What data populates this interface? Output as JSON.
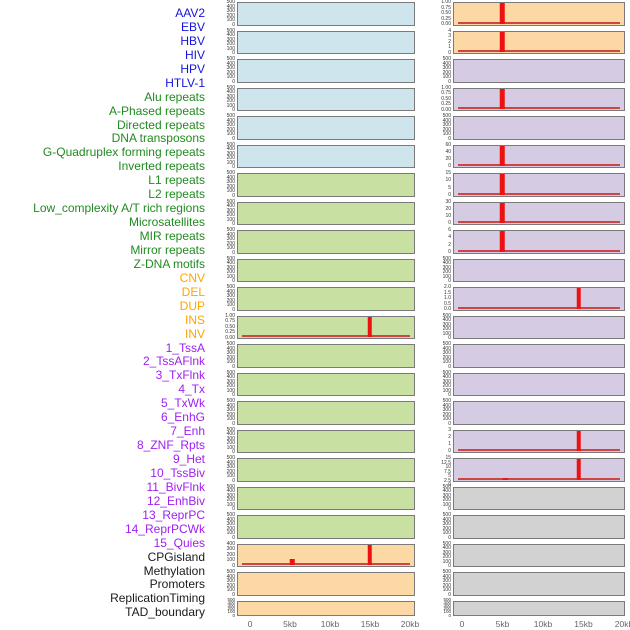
{
  "chart_data": {
    "type": "bar",
    "description": "Per-track genomic feature density profiles over a 0-20kb window; two panel columns of 22 tracks each; red bars mark feature density spikes",
    "x_axis": {
      "tick_labels": [
        "0",
        "5kb",
        "10kb",
        "15kb",
        "20kb"
      ],
      "range_kb": [
        0,
        20
      ]
    },
    "groups": {
      "virus": {
        "label_color": "#1414dc",
        "panel_color": "#cfe5ee"
      },
      "repeat": {
        "label_color": "#208b20",
        "panel_color": "#c9e0a3"
      },
      "sv": {
        "label_color": "#ffa500",
        "panel_color": "#fcd8a4"
      },
      "chromhmm": {
        "label_color": "#a020f0",
        "panel_color": "#d5cbe3"
      },
      "other": {
        "label_color": "#1a1a1a",
        "panel_color": "#d2d2d2"
      }
    },
    "colors": {
      "spike": "#ee1111",
      "baseline": "#cf4444",
      "panel_border": "#7a7a7a",
      "tick_text": "#333333",
      "axis_text": "#666666"
    },
    "tracks": [
      {
        "label": "AAV2",
        "group": "virus",
        "column": "left",
        "y_ticks": [
          "500",
          "400",
          "300",
          "200",
          "100",
          "0"
        ],
        "spikes": [],
        "baseline": false
      },
      {
        "label": "EBV",
        "group": "virus",
        "column": "left",
        "y_ticks": [
          "500",
          "400",
          "300",
          "200",
          "100",
          "0"
        ],
        "spikes": [],
        "baseline": false
      },
      {
        "label": "HBV",
        "group": "virus",
        "column": "left",
        "y_ticks": [
          "500",
          "400",
          "300",
          "200",
          "100",
          "0"
        ],
        "spikes": [],
        "baseline": false
      },
      {
        "label": "HIV",
        "group": "virus",
        "column": "left",
        "y_ticks": [
          "500",
          "400",
          "300",
          "200",
          "100",
          "0"
        ],
        "spikes": [],
        "baseline": false
      },
      {
        "label": "HPV",
        "group": "virus",
        "column": "left",
        "y_ticks": [
          "500",
          "400",
          "300",
          "200",
          "100",
          "0"
        ],
        "spikes": [],
        "baseline": false
      },
      {
        "label": "HTLV-1",
        "group": "virus",
        "column": "left",
        "y_ticks": [
          "500",
          "400",
          "300",
          "200",
          "100",
          "0"
        ],
        "spikes": [],
        "baseline": false
      },
      {
        "label": "Alu repeats",
        "group": "repeat",
        "column": "left",
        "y_ticks": [
          "500",
          "400",
          "300",
          "200",
          "100",
          "0"
        ],
        "spikes": [],
        "baseline": false
      },
      {
        "label": "A-Phased repeats",
        "group": "repeat",
        "column": "left",
        "y_ticks": [
          "500",
          "400",
          "300",
          "200",
          "100",
          "0"
        ],
        "spikes": [],
        "baseline": false
      },
      {
        "label": "Directed repeats",
        "group": "repeat",
        "column": "left",
        "y_ticks": [
          "500",
          "400",
          "300",
          "200",
          "100",
          "0"
        ],
        "spikes": [],
        "baseline": false
      },
      {
        "label": "DNA transposons",
        "group": "repeat",
        "column": "left",
        "y_ticks": [
          "500",
          "400",
          "300",
          "200",
          "100",
          "0"
        ],
        "spikes": [],
        "baseline": false
      },
      {
        "label": "G-Quadruplex forming repeats",
        "group": "repeat",
        "column": "left",
        "y_ticks": [
          "500",
          "400",
          "300",
          "200",
          "100",
          "0"
        ],
        "spikes": [],
        "baseline": false
      },
      {
        "label": "Inverted repeats",
        "group": "repeat",
        "column": "left",
        "y_ticks": [
          "1.00",
          "0.75",
          "0.50",
          "0.25",
          "0.00"
        ],
        "spikes": [
          {
            "kb": 15,
            "h": 0.93
          }
        ],
        "baseline": true
      },
      {
        "label": "L1 repeats",
        "group": "repeat",
        "column": "left",
        "y_ticks": [
          "500",
          "400",
          "300",
          "200",
          "100",
          "0"
        ],
        "spikes": [],
        "baseline": false
      },
      {
        "label": "L2 repeats",
        "group": "repeat",
        "column": "left",
        "y_ticks": [
          "500",
          "400",
          "300",
          "200",
          "100",
          "0"
        ],
        "spikes": [],
        "baseline": false
      },
      {
        "label": "Low_complexity A/T rich regions",
        "group": "repeat",
        "column": "left",
        "y_ticks": [
          "500",
          "400",
          "300",
          "200",
          "100",
          "0"
        ],
        "spikes": [],
        "baseline": false
      },
      {
        "label": "Microsatellites",
        "group": "repeat",
        "column": "left",
        "y_ticks": [
          "500",
          "400",
          "300",
          "200",
          "100",
          "0"
        ],
        "spikes": [],
        "baseline": false
      },
      {
        "label": "MIR repeats",
        "group": "repeat",
        "column": "left",
        "y_ticks": [
          "500",
          "400",
          "300",
          "200",
          "100",
          "0"
        ],
        "spikes": [],
        "baseline": false
      },
      {
        "label": "Mirror repeats",
        "group": "repeat",
        "column": "left",
        "y_ticks": [
          "500",
          "400",
          "300",
          "200",
          "100",
          "0"
        ],
        "spikes": [],
        "baseline": false
      },
      {
        "label": "Z-DNA motifs",
        "group": "repeat",
        "column": "left",
        "y_ticks": [
          "500",
          "400",
          "300",
          "200",
          "100",
          "0"
        ],
        "spikes": [],
        "baseline": false
      },
      {
        "label": "CNV",
        "group": "sv",
        "column": "left",
        "y_ticks": [
          "400",
          "300",
          "200",
          "100",
          "0"
        ],
        "spikes": [
          {
            "kb": 5.25,
            "h": 0.27
          },
          {
            "kb": 15,
            "h": 1
          }
        ],
        "baseline": true
      },
      {
        "label": "DEL",
        "group": "sv",
        "column": "left",
        "y_ticks": [
          "500",
          "400",
          "300",
          "200",
          "100",
          "0"
        ],
        "spikes": [],
        "baseline": false
      },
      {
        "label": "DUP",
        "group": "sv",
        "column": "left",
        "y_ticks": [
          "500",
          "400",
          "300",
          "200",
          "100",
          "0"
        ],
        "spikes": [],
        "baseline": false
      },
      {
        "label": "INS",
        "group": "sv",
        "column": "right",
        "y_ticks": [
          "1.00",
          "0.75",
          "0.50",
          "0.25",
          "0.00"
        ],
        "spikes": [
          {
            "kb": 4.9,
            "h": 1
          }
        ],
        "baseline": true
      },
      {
        "label": "INV",
        "group": "sv",
        "column": "right",
        "y_ticks": [
          "4",
          "3",
          "2",
          "1",
          "0"
        ],
        "spikes": [
          {
            "kb": 4.9,
            "h": 1
          }
        ],
        "baseline": true
      },
      {
        "label": "1_TssA",
        "group": "chromhmm",
        "column": "right",
        "y_ticks": [
          "500",
          "400",
          "300",
          "200",
          "100",
          "0"
        ],
        "spikes": [],
        "baseline": false
      },
      {
        "label": "2_TssAFlnk",
        "group": "chromhmm",
        "column": "right",
        "y_ticks": [
          "1.00",
          "0.75",
          "0.50",
          "0.25",
          "0.00"
        ],
        "spikes": [
          {
            "kb": 4.9,
            "h": 1
          }
        ],
        "baseline": true
      },
      {
        "label": "3_TxFlnk",
        "group": "chromhmm",
        "column": "right",
        "y_ticks": [
          "500",
          "400",
          "300",
          "200",
          "100",
          "0"
        ],
        "spikes": [],
        "baseline": false
      },
      {
        "label": "4_Tx",
        "group": "chromhmm",
        "column": "right",
        "y_ticks": [
          "60",
          "40",
          "20",
          "0"
        ],
        "spikes": [
          {
            "kb": 4.9,
            "h": 1
          }
        ],
        "baseline": true
      },
      {
        "label": "5_TxWk",
        "group": "chromhmm",
        "column": "right",
        "y_ticks": [
          "15",
          "10",
          "5",
          "0"
        ],
        "spikes": [
          {
            "kb": 4.9,
            "h": 1
          }
        ],
        "baseline": true
      },
      {
        "label": "6_EnhG",
        "group": "chromhmm",
        "column": "right",
        "y_ticks": [
          "30",
          "20",
          "10",
          "0"
        ],
        "spikes": [
          {
            "kb": 4.9,
            "h": 1
          }
        ],
        "baseline": true
      },
      {
        "label": "7_Enh",
        "group": "chromhmm",
        "column": "right",
        "y_ticks": [
          "6",
          "4",
          "2",
          "0"
        ],
        "spikes": [
          {
            "kb": 4.9,
            "h": 1
          }
        ],
        "baseline": true
      },
      {
        "label": "8_ZNF_Rpts",
        "group": "chromhmm",
        "column": "right",
        "y_ticks": [
          "500",
          "400",
          "300",
          "200",
          "100",
          "0"
        ],
        "spikes": [],
        "baseline": false
      },
      {
        "label": "9_Het",
        "group": "chromhmm",
        "column": "right",
        "y_ticks": [
          "2.0",
          "1.5",
          "1.0",
          "0.5",
          "0.0"
        ],
        "spikes": [
          {
            "kb": 14.5,
            "h": 1
          }
        ],
        "baseline": true
      },
      {
        "label": "10_TssBiv",
        "group": "chromhmm",
        "column": "right",
        "y_ticks": [
          "500",
          "400",
          "300",
          "200",
          "100",
          "0"
        ],
        "spikes": [],
        "baseline": false
      },
      {
        "label": "11_BivFlnk",
        "group": "chromhmm",
        "column": "right",
        "y_ticks": [
          "500",
          "400",
          "300",
          "200",
          "100",
          "0"
        ],
        "spikes": [],
        "baseline": false
      },
      {
        "label": "12_EnhBiv",
        "group": "chromhmm",
        "column": "right",
        "y_ticks": [
          "500",
          "400",
          "300",
          "200",
          "100",
          "0"
        ],
        "spikes": [],
        "baseline": false
      },
      {
        "label": "13_ReprPC",
        "group": "chromhmm",
        "column": "right",
        "y_ticks": [
          "500",
          "400",
          "300",
          "200",
          "100",
          "0"
        ],
        "spikes": [],
        "baseline": false
      },
      {
        "label": "14_ReprPCWk",
        "group": "chromhmm",
        "column": "right",
        "y_ticks": [
          "3",
          "2",
          "1",
          "0"
        ],
        "spikes": [
          {
            "kb": 14.5,
            "h": 1
          }
        ],
        "baseline": true
      },
      {
        "label": "15_Quies",
        "group": "chromhmm",
        "column": "right",
        "y_ticks": [
          "15",
          "12.5",
          "10",
          "7.5",
          "5",
          "2.5",
          "0"
        ],
        "spikes": [
          {
            "kb": 5.3,
            "h": 0.07
          },
          {
            "kb": 14.5,
            "h": 1
          }
        ],
        "baseline": true
      },
      {
        "label": "CPGisland",
        "group": "other",
        "column": "right",
        "y_ticks": [
          "500",
          "400",
          "300",
          "200",
          "100",
          "0"
        ],
        "spikes": [],
        "baseline": false
      },
      {
        "label": "Methylation",
        "group": "other",
        "column": "right",
        "y_ticks": [
          "500",
          "400",
          "300",
          "200",
          "100",
          "0"
        ],
        "spikes": [],
        "baseline": false
      },
      {
        "label": "Promoters",
        "group": "other",
        "column": "right",
        "y_ticks": [
          "500",
          "400",
          "300",
          "200",
          "100",
          "0"
        ],
        "spikes": [],
        "baseline": false
      },
      {
        "label": "ReplicationTiming",
        "group": "other",
        "column": "right",
        "y_ticks": [
          "500",
          "400",
          "300",
          "200",
          "100",
          "0"
        ],
        "spikes": [],
        "baseline": false
      },
      {
        "label": "TAD_boundary",
        "group": "other",
        "column": "right",
        "y_ticks": [
          "500",
          "400",
          "300",
          "200",
          "100",
          "0"
        ],
        "spikes": [],
        "baseline": false
      }
    ]
  }
}
